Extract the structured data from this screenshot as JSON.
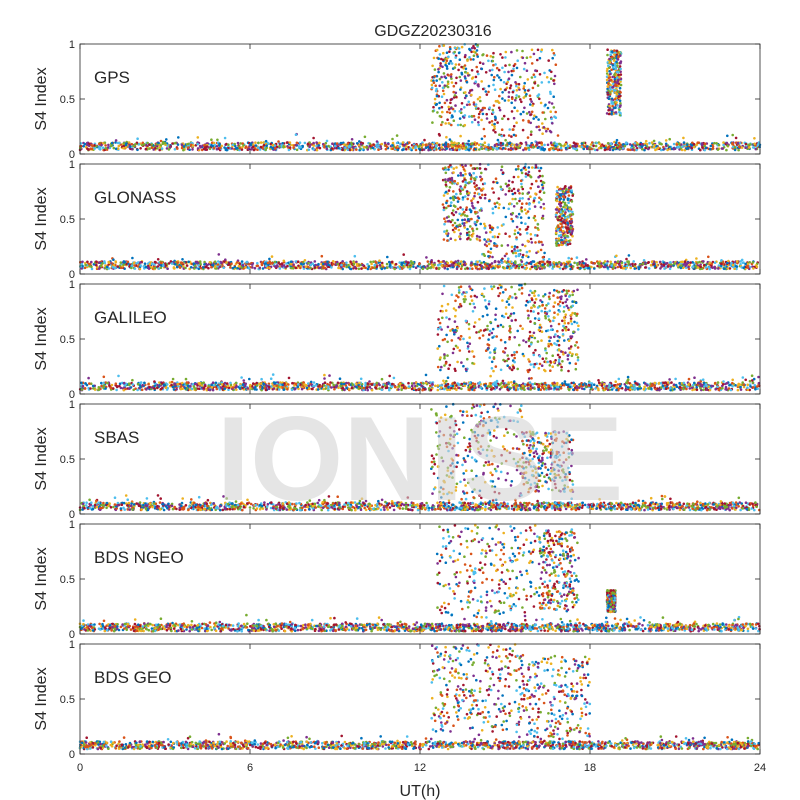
{
  "chart_data": {
    "type": "scatter",
    "title": "GDGZ20230316",
    "xlabel": "UT(h)",
    "ylabel": "S4 Index",
    "xlim": [
      0,
      24
    ],
    "ylim": [
      0,
      1
    ],
    "xticks": [
      "0",
      "6",
      "12",
      "18",
      "24"
    ],
    "yticks": [
      "0",
      "0.5",
      "1"
    ],
    "watermark": "IONISE",
    "colors": [
      "#0072BD",
      "#D95319",
      "#EDB120",
      "#7E2F8E",
      "#77AC30",
      "#4DBEEE",
      "#A2142F"
    ],
    "panels": [
      {
        "label": "GPS",
        "baseline": 0.07,
        "scint": [
          {
            "x": [
              12.4,
              14.2
            ],
            "y": [
              0.25,
              1.0
            ]
          },
          {
            "x": [
              14.2,
              16.8
            ],
            "y": [
              0.15,
              0.95
            ]
          },
          {
            "x": [
              18.6,
              19.1
            ],
            "y": [
              0.35,
              0.95
            ]
          }
        ]
      },
      {
        "label": "GLONASS",
        "baseline": 0.08,
        "scint": [
          {
            "x": [
              12.8,
              14.2
            ],
            "y": [
              0.3,
              1.0
            ]
          },
          {
            "x": [
              14.2,
              16.4
            ],
            "y": [
              0.15,
              1.0
            ]
          },
          {
            "x": [
              16.8,
              17.4
            ],
            "y": [
              0.25,
              0.8
            ]
          }
        ]
      },
      {
        "label": "GALILEO",
        "baseline": 0.07,
        "scint": [
          {
            "x": [
              12.6,
              15.8
            ],
            "y": [
              0.2,
              1.0
            ]
          },
          {
            "x": [
              15.8,
              17.6
            ],
            "y": [
              0.2,
              0.95
            ]
          }
        ]
      },
      {
        "label": "SBAS",
        "baseline": 0.07,
        "scint": [
          {
            "x": [
              12.4,
              15.6
            ],
            "y": [
              0.15,
              1.0
            ]
          },
          {
            "x": [
              15.6,
              17.4
            ],
            "y": [
              0.2,
              0.75
            ]
          }
        ]
      },
      {
        "label": "BDS NGEO",
        "baseline": 0.06,
        "scint": [
          {
            "x": [
              12.6,
              16.2
            ],
            "y": [
              0.15,
              1.0
            ]
          },
          {
            "x": [
              16.2,
              17.6
            ],
            "y": [
              0.2,
              0.95
            ]
          },
          {
            "x": [
              18.6,
              18.9
            ],
            "y": [
              0.2,
              0.4
            ]
          }
        ]
      },
      {
        "label": "BDS GEO",
        "baseline": 0.08,
        "scint": [
          {
            "x": [
              12.4,
              15.4
            ],
            "y": [
              0.2,
              1.0
            ]
          },
          {
            "x": [
              15.4,
              18.0
            ],
            "y": [
              0.15,
              0.9
            ]
          }
        ]
      }
    ]
  }
}
